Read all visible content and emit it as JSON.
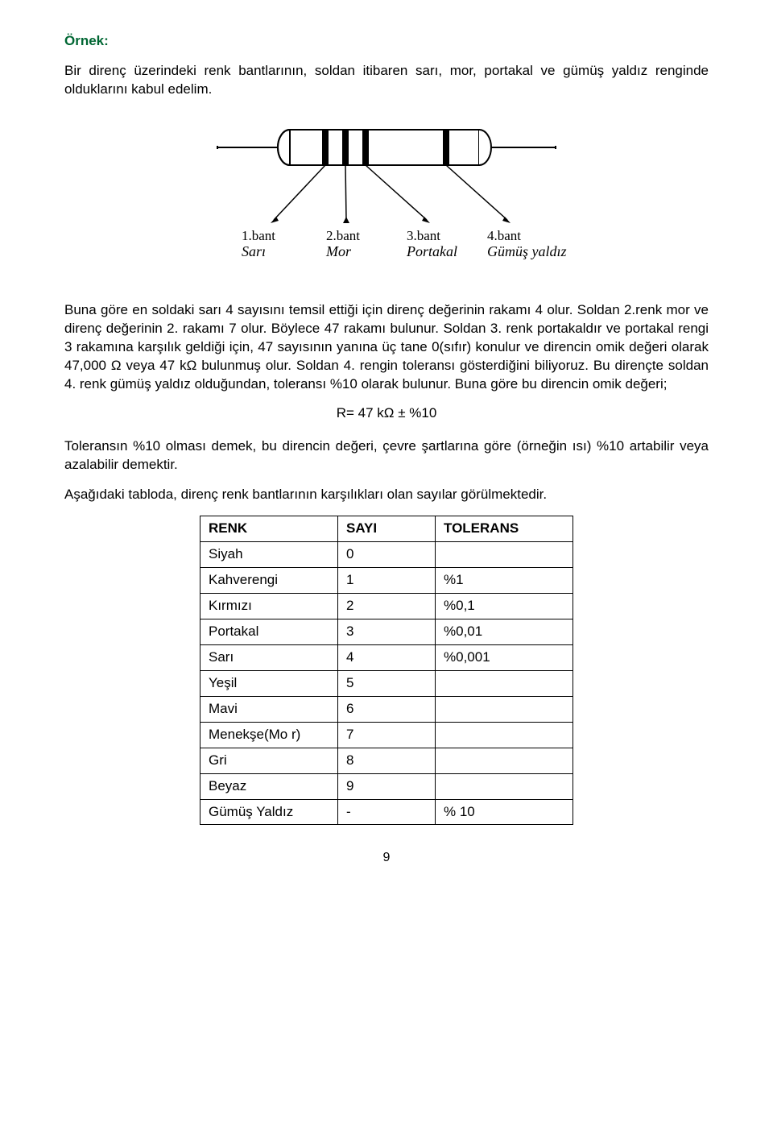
{
  "heading": "Örnek:",
  "intro": "Bir direnç üzerindeki renk bantlarının, soldan itibaren sarı, mor, portakal ve gümüş yaldız renginde olduklarını kabul edelim.",
  "figure": {
    "labels": [
      {
        "num": "1.bant",
        "name": "Sarı"
      },
      {
        "num": "2.bant",
        "name": "Mor"
      },
      {
        "num": "3.bant",
        "name": "Portakal"
      },
      {
        "num": "4.bant",
        "name": "Gümüş yaldız"
      }
    ],
    "colors": {
      "stroke": "#000000",
      "fill_body": "#ffffff",
      "band": "#000000"
    }
  },
  "explanation": "Buna göre en soldaki sarı 4 sayısını temsil ettiği için direnç değerinin rakamı 4 olur. Soldan 2.renk mor ve direnç değerinin 2. rakamı 7 olur. Böylece 47 rakamı bulunur. Soldan 3. renk portakaldır ve portakal rengi 3 rakamına karşılık geldiği için, 47 sayısının yanına üç tane 0(sıfır) konulur ve direncin omik değeri olarak 47,000 Ω veya 47 kΩ bulunmuş olur. Soldan 4. rengin toleransı gösterdiğini biliyoruz. Bu dirençte soldan 4. renk gümüş yaldız olduğundan, toleransı %10 olarak bulunur. Buna göre bu direncin omik değeri;",
  "formula": "R= 47 kΩ  ±  %10",
  "tolerance_text": "Toleransın %10 olması demek, bu direncin değeri, çevre şartlarına göre (örneğin ısı) %10 artabilir veya azalabilir demektir.",
  "table_intro": "Aşağıdaki tabloda, direnç renk bantlarının karşılıkları olan sayılar görülmektedir.",
  "table": {
    "headers": {
      "renk": "RENK",
      "sayi": "SAYI",
      "tolerans": "TOLERANS"
    },
    "rows": [
      {
        "renk": "Siyah",
        "sayi": "0",
        "tol": ""
      },
      {
        "renk": "Kahverengi",
        "sayi": "1",
        "tol": "%1"
      },
      {
        "renk": "Kırmızı",
        "sayi": "2",
        "tol": "%0,1"
      },
      {
        "renk": "Portakal",
        "sayi": "3",
        "tol": "%0,01"
      },
      {
        "renk": "Sarı",
        "sayi": "4",
        "tol": "%0,001"
      },
      {
        "renk": "Yeşil",
        "sayi": "5",
        "tol": ""
      },
      {
        "renk": "Mavi",
        "sayi": "6",
        "tol": ""
      },
      {
        "renk": "Menekşe(Mo r)",
        "sayi": "7",
        "tol": ""
      },
      {
        "renk": "Gri",
        "sayi": "8",
        "tol": ""
      },
      {
        "renk": "Beyaz",
        "sayi": "9",
        "tol": ""
      },
      {
        "renk": "Gümüş Yaldız",
        "sayi": "-",
        "tol": "% 10"
      }
    ]
  },
  "page_number": "9"
}
